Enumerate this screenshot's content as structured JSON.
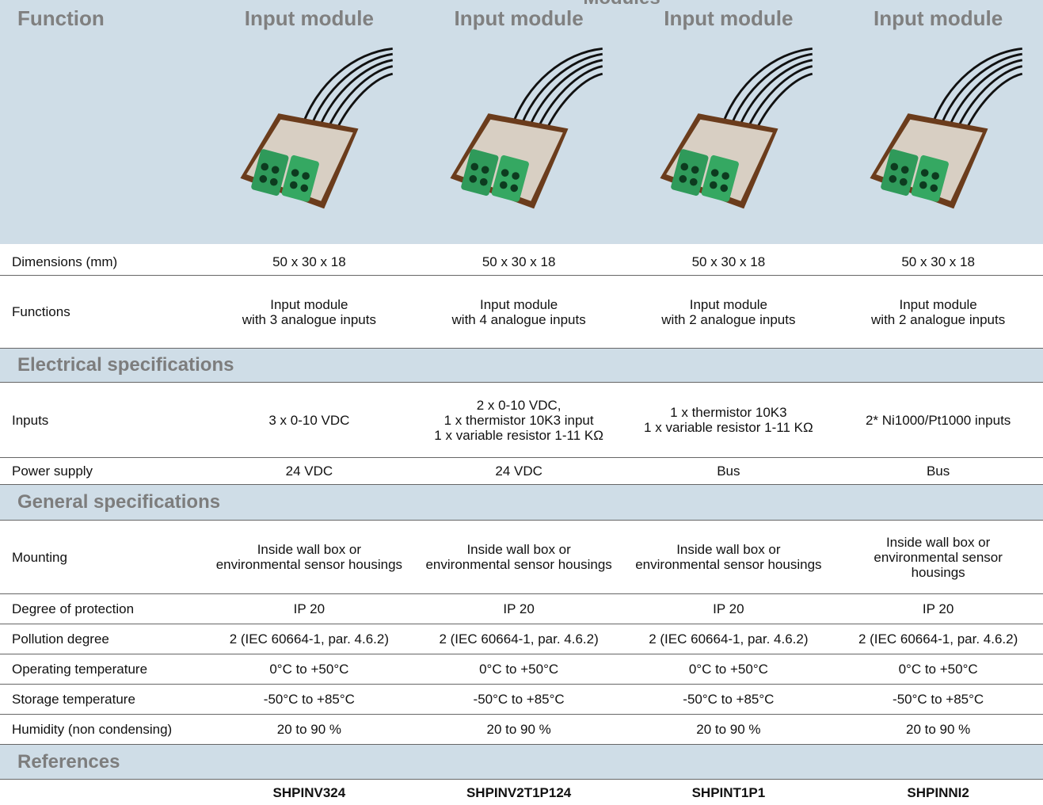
{
  "header": {
    "supertitle": "Modules",
    "label": "Function",
    "columns": [
      "Input module",
      "Input module",
      "Input module",
      "Input module"
    ]
  },
  "table": {
    "rows": [
      {
        "label": "Dimensions (mm)",
        "cells": [
          "50 x 30 x 18",
          "50 x 30 x 18",
          "50 x 30 x 18",
          "50 x 30 x 18"
        ]
      },
      {
        "label": "Functions",
        "cells": [
          "Input module\nwith 3 analogue inputs",
          "Input module\nwith 4 analogue inputs",
          "Input module\nwith 2 analogue inputs",
          "Input module\nwith 2 analogue inputs"
        ]
      },
      {
        "section": "Electrical specifications"
      },
      {
        "label": "Inputs",
        "cells": [
          "3 x 0-10 VDC",
          "2 x 0-10 VDC,\n1 x thermistor 10K3 input\n1 x variable resistor 1-11 KΩ",
          "1 x thermistor 10K3\n1 x variable resistor 1-11 KΩ",
          "2* Ni1000/Pt1000 inputs"
        ]
      },
      {
        "label": "Power supply",
        "cells": [
          "24 VDC",
          "24 VDC",
          "Bus",
          "Bus"
        ]
      },
      {
        "section": "General specifications"
      },
      {
        "label": "Mounting",
        "cells": [
          "Inside wall box or\nenvironmental sensor housings",
          "Inside wall box or\nenvironmental sensor housings",
          "Inside wall box or\nenvironmental sensor housings",
          "Inside wall box or\nenvironmental sensor\nhousings"
        ]
      },
      {
        "label": "Degree of protection",
        "cells": [
          "IP 20",
          "IP 20",
          "IP 20",
          "IP 20"
        ]
      },
      {
        "label": "Pollution degree",
        "cells": [
          "2 (IEC 60664-1, par. 4.6.2)",
          "2 (IEC 60664-1, par. 4.6.2)",
          "2 (IEC 60664-1, par. 4.6.2)",
          "2 (IEC 60664-1, par. 4.6.2)"
        ]
      },
      {
        "label": "Operating temperature",
        "cells": [
          "0°C to +50°C",
          "0°C to +50°C",
          "0°C to +50°C",
          "0°C to +50°C"
        ]
      },
      {
        "label": "Storage temperature",
        "cells": [
          "-50°C to +85°C",
          "-50°C to +85°C",
          "-50°C to +85°C",
          "-50°C to +85°C"
        ]
      },
      {
        "label": "Humidity (non condensing)",
        "cells": [
          "20 to 90 %",
          "20 to 90 %",
          "20 to 90 %",
          "20 to 90 %"
        ]
      },
      {
        "section": "References"
      },
      {
        "cells": [
          "SHPINV324",
          "SHPINV2T1P124",
          "SHPINT1P1",
          "SHPINNI2"
        ]
      }
    ]
  }
}
